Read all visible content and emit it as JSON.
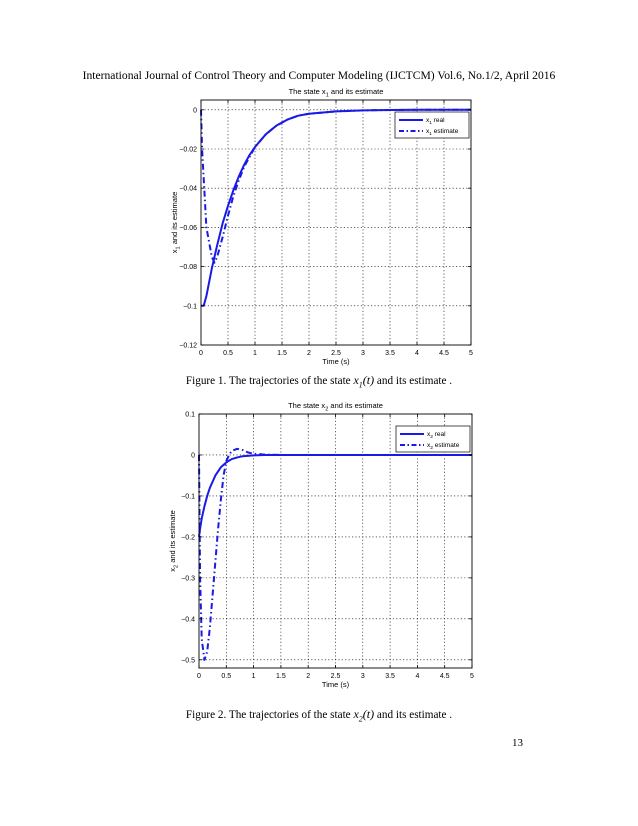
{
  "header": "International Journal of Control Theory and Computer Modeling (IJCTCM) Vol.6, No.1/2, April 2016",
  "figures": [
    {
      "caption_prefix": "Figure 1.  The trajectories of the state ",
      "caption_var": "x",
      "caption_sub": "1",
      "caption_arg": "(t)",
      "caption_suffix": " and its estimate .",
      "chart_data": {
        "type": "line",
        "title": "The state x",
        "title_sub": "1",
        "title_rest": " and its estimate",
        "xlabel": "Time (s)",
        "ylabel": "x",
        "ylabel_sub": "1",
        "ylabel_rest": " and its estimate",
        "xlim": [
          0,
          5
        ],
        "ylim": [
          -0.12,
          0.005
        ],
        "xticks": [
          0,
          0.5,
          1,
          1.5,
          2,
          2.5,
          3,
          3.5,
          4,
          4.5,
          5
        ],
        "xtick_labels": [
          "0",
          "0.5",
          "1",
          "1.5",
          "2",
          "2.5",
          "3",
          "3.5",
          "4",
          "4.5",
          "5"
        ],
        "yticks": [
          -0.12,
          -0.1,
          -0.08,
          -0.06,
          -0.04,
          -0.02,
          0
        ],
        "ytick_labels": [
          "−0.12",
          "−0.1",
          "−0.08",
          "−0.06",
          "−0.04",
          "−0.02",
          "0"
        ],
        "grid": true,
        "legend_position": "top-right",
        "color": "#1a1ae6",
        "series": [
          {
            "name": "x",
            "name_sub": "1",
            "name_rest": " real",
            "style": "solid",
            "x": [
              0,
              0.05,
              0.1,
              0.15,
              0.2,
              0.3,
              0.4,
              0.5,
              0.6,
              0.7,
              0.8,
              0.9,
              1.0,
              1.2,
              1.4,
              1.6,
              1.8,
              2.0,
              2.5,
              3.0,
              3.5,
              4.0,
              4.5,
              5.0
            ],
            "y": [
              -0.1,
              -0.1,
              -0.095,
              -0.088,
              -0.081,
              -0.069,
              -0.058,
              -0.049,
              -0.041,
              -0.034,
              -0.028,
              -0.023,
              -0.019,
              -0.0125,
              -0.008,
              -0.005,
              -0.003,
              -0.002,
              -0.0008,
              -0.0003,
              -0.0001,
              0,
              0,
              0
            ]
          },
          {
            "name": "x",
            "name_sub": "1",
            "name_rest": " estimate",
            "style": "dashdot",
            "x": [
              0,
              0.02,
              0.1,
              0.2,
              0.25,
              0.3,
              0.4,
              0.5,
              0.6,
              0.7,
              0.8,
              0.9,
              1.0,
              1.2,
              1.4,
              1.6,
              1.8,
              2.0,
              2.5,
              3.0,
              3.5,
              4.0,
              4.5,
              5.0
            ],
            "y": [
              0,
              -0.02,
              -0.06,
              -0.075,
              -0.078,
              -0.075,
              -0.065,
              -0.054,
              -0.044,
              -0.036,
              -0.029,
              -0.024,
              -0.019,
              -0.0125,
              -0.008,
              -0.005,
              -0.003,
              -0.002,
              -0.0008,
              -0.0003,
              -0.0001,
              0,
              0,
              0
            ]
          }
        ]
      }
    },
    {
      "caption_prefix": "Figure 2.  The trajectories of the state ",
      "caption_var": "x",
      "caption_sub": "2",
      "caption_arg": "(t)",
      "caption_suffix": " and its estimate .",
      "chart_data": {
        "type": "line",
        "title": "The state x",
        "title_sub": "2",
        "title_rest": " and its estimate",
        "xlabel": "Time (s)",
        "ylabel": "x",
        "ylabel_sub": "2",
        "ylabel_rest": " and its estimate",
        "xlim": [
          0,
          5
        ],
        "ylim": [
          -0.52,
          0.1
        ],
        "xticks": [
          0,
          0.5,
          1,
          1.5,
          2,
          2.5,
          3,
          3.5,
          4,
          4.5,
          5
        ],
        "xtick_labels": [
          "0",
          "0.5",
          "1",
          "1.5",
          "2",
          "2.5",
          "3",
          "3.5",
          "4",
          "4.5",
          "5"
        ],
        "yticks": [
          -0.5,
          -0.4,
          -0.3,
          -0.2,
          -0.1,
          0,
          0.1
        ],
        "ytick_labels": [
          "−0.5",
          "−0.4",
          "−0.3",
          "−0.2",
          "−0.1",
          "0",
          "0.1"
        ],
        "grid": true,
        "legend_position": "top-right",
        "color": "#1a1ae6",
        "series": [
          {
            "name": "x",
            "name_sub": "2",
            "name_rest": " real",
            "style": "solid",
            "x": [
              0,
              0.02,
              0.05,
              0.1,
              0.15,
              0.2,
              0.3,
              0.4,
              0.5,
              0.6,
              0.7,
              0.8,
              1.0,
              1.2,
              1.5,
              2.0,
              2.5,
              3.0,
              4.0,
              5.0
            ],
            "y": [
              -0.2,
              -0.18,
              -0.155,
              -0.125,
              -0.1,
              -0.08,
              -0.05,
              -0.03,
              -0.018,
              -0.01,
              -0.006,
              -0.003,
              -0.001,
              0,
              0,
              0,
              0,
              0,
              0,
              0
            ]
          },
          {
            "name": "x",
            "name_sub": "2",
            "name_rest": " estimate",
            "style": "dashdot",
            "x": [
              0,
              0.02,
              0.05,
              0.1,
              0.15,
              0.2,
              0.25,
              0.3,
              0.35,
              0.4,
              0.45,
              0.5,
              0.55,
              0.6,
              0.7,
              0.8,
              0.9,
              1.0,
              1.2,
              1.5,
              2.0,
              2.5,
              3.0,
              4.0,
              5.0
            ],
            "y": [
              0,
              -0.3,
              -0.45,
              -0.5,
              -0.48,
              -0.42,
              -0.34,
              -0.26,
              -0.18,
              -0.11,
              -0.05,
              -0.015,
              0,
              0.01,
              0.015,
              0.012,
              0.006,
              0.003,
              0.001,
              0,
              0,
              0,
              0,
              0,
              0
            ]
          }
        ]
      }
    }
  ],
  "page_number": "13"
}
